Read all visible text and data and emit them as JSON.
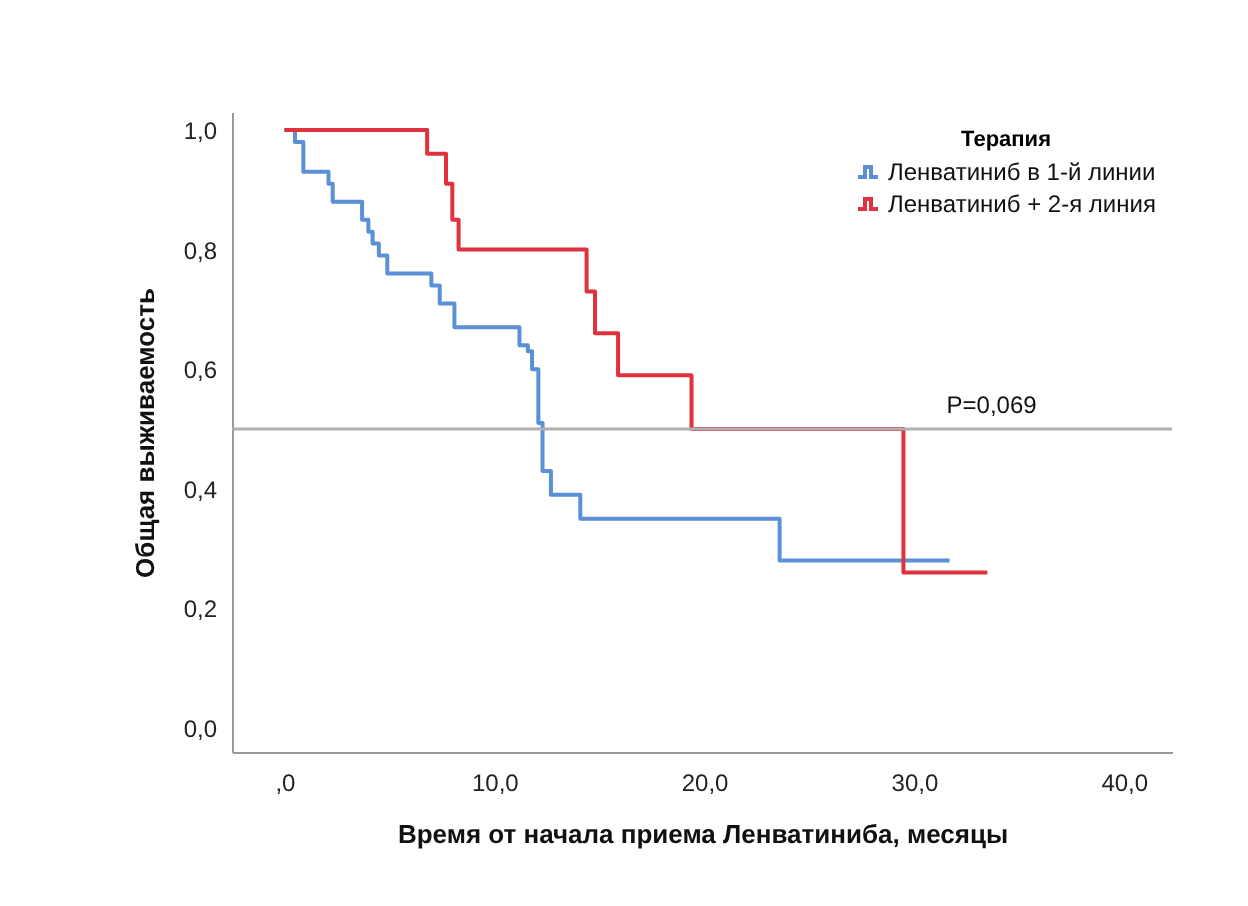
{
  "chart_data": {
    "type": "step",
    "xlabel": "Время от начала приема Ленватиниба, месяцы",
    "ylabel": "Общая выживаемость",
    "legend_title": "Терапия",
    "xlim": [
      -2.5,
      42.3
    ],
    "ylim": [
      -0.04,
      1.03
    ],
    "xticks": [
      {
        "value": 0,
        "label": ",0"
      },
      {
        "value": 10,
        "label": "10,0"
      },
      {
        "value": 20,
        "label": "20,0"
      },
      {
        "value": 30,
        "label": "30,0"
      },
      {
        "value": 40,
        "label": "40,0"
      }
    ],
    "yticks": [
      {
        "value": 0,
        "label": "0,0"
      },
      {
        "value": 0.2,
        "label": "0,2"
      },
      {
        "value": 0.4,
        "label": "0,4"
      },
      {
        "value": 0.6,
        "label": "0,6"
      },
      {
        "value": 0.8,
        "label": "0,8"
      },
      {
        "value": 1,
        "label": "1,0"
      }
    ],
    "grid": false,
    "legend": "top right",
    "series": [
      {
        "name": "Ленватиниб в 1-й линии",
        "color": "#5b8fd6",
        "x": [
          0,
          0.5,
          0.9,
          2.1,
          2.3,
          3.7,
          4.0,
          4.2,
          4.5,
          4.9,
          7.0,
          7.4,
          8.1,
          11.2,
          11.6,
          11.8,
          12.1,
          12.3,
          12.7,
          14.1,
          23.6,
          31.7
        ],
        "values": [
          1.0,
          0.98,
          0.93,
          0.91,
          0.88,
          0.85,
          0.83,
          0.81,
          0.79,
          0.76,
          0.74,
          0.71,
          0.67,
          0.64,
          0.63,
          0.6,
          0.51,
          0.43,
          0.39,
          0.35,
          0.28,
          0.28
        ]
      },
      {
        "name": "Ленватиниб + 2-я линия",
        "color": "#e0313f",
        "x": [
          0,
          6.8,
          7.7,
          8.0,
          8.3,
          14.4,
          14.8,
          15.9,
          19.4,
          29.5,
          33.5
        ],
        "values": [
          1.0,
          0.96,
          0.91,
          0.85,
          0.8,
          0.73,
          0.66,
          0.59,
          0.5,
          0.26,
          0.26
        ]
      }
    ],
    "ref_lines": [
      {
        "axis": "y",
        "value": 0.5,
        "color": "#b0b0b0"
      }
    ],
    "annotations": [
      {
        "text": "P=0,069",
        "x": 33.7,
        "y": 0.5
      }
    ]
  }
}
